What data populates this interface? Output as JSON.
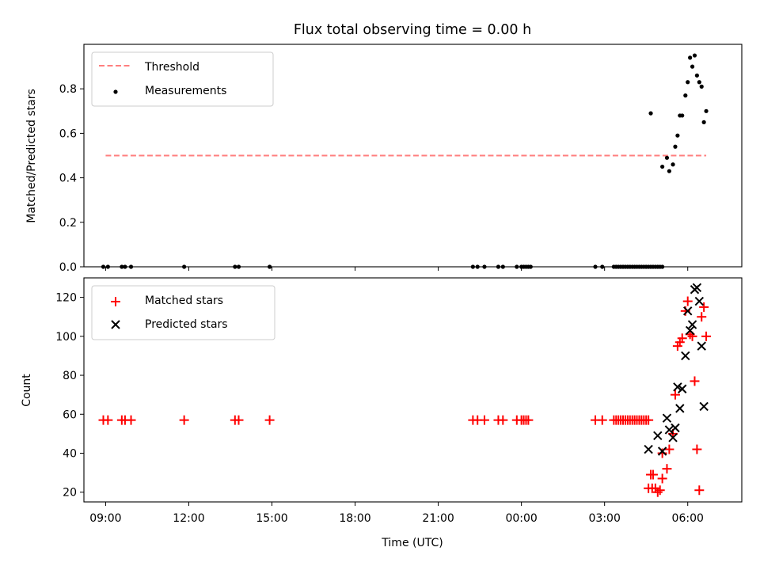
{
  "chart_data": [
    {
      "type": "scatter",
      "title": "Flux total observing time = 0.00 h",
      "xlabel": "",
      "ylabel": "Matched/Predicted stars",
      "xlim": [
        "08:13",
        "31:57"
      ],
      "ylim": [
        0,
        1.0
      ],
      "yticks": [
        "0.0",
        "0.2",
        "0.4",
        "0.6",
        "0.8"
      ],
      "legend_location": "upper left",
      "legend": [
        {
          "label": "Threshold",
          "marker": "dashed-line",
          "color": "#ff7f7f"
        },
        {
          "label": "Measurements",
          "marker": "dot",
          "color": "#000000"
        }
      ],
      "threshold": {
        "value": 0.5,
        "x_start": "09:00",
        "x_end": "30:40"
      },
      "series": [
        {
          "name": "Measurements",
          "color": "#000000",
          "x": [
            "08:55",
            "09:05",
            "09:35",
            "09:42",
            "09:55",
            "11:50",
            "13:40",
            "13:48",
            "14:55",
            "22:15",
            "22:25",
            "22:40",
            "23:10",
            "23:20",
            "23:50",
            "24:00",
            "24:05",
            "24:10",
            "24:15",
            "24:20",
            "26:40",
            "26:55",
            "27:20",
            "27:25",
            "27:30",
            "27:35",
            "27:40",
            "27:45",
            "27:50",
            "27:55",
            "28:00",
            "28:05",
            "28:10",
            "28:15",
            "28:20",
            "28:25",
            "28:30",
            "28:35",
            "28:40",
            "28:45",
            "28:50",
            "28:55",
            "29:00",
            "29:05",
            "28:40",
            "29:05",
            "29:15",
            "29:20",
            "29:28",
            "29:33",
            "29:38",
            "29:43",
            "29:48",
            "29:55",
            "30:00",
            "30:05",
            "30:10",
            "30:15",
            "30:20",
            "30:25",
            "30:30",
            "30:35",
            "30:40"
          ],
          "y": [
            0,
            0,
            0,
            0,
            0,
            0,
            0,
            0,
            0,
            0,
            0,
            0,
            0,
            0,
            0,
            0,
            0,
            0,
            0,
            0,
            0,
            0,
            0,
            0,
            0,
            0,
            0,
            0,
            0,
            0,
            0,
            0,
            0,
            0,
            0,
            0,
            0,
            0,
            0,
            0,
            0,
            0,
            0,
            0,
            0.69,
            0.45,
            0.49,
            0.43,
            0.46,
            0.54,
            0.59,
            0.68,
            0.68,
            0.77,
            0.83,
            0.94,
            0.9,
            0.95,
            0.86,
            0.83,
            0.81,
            0.65,
            0.7
          ]
        }
      ]
    },
    {
      "type": "scatter",
      "xlabel": "Time (UTC)",
      "ylabel": "Count",
      "xlim": [
        "08:13",
        "31:57"
      ],
      "ylim": [
        15,
        130
      ],
      "xticks": [
        "09:00",
        "12:00",
        "15:00",
        "18:00",
        "21:00",
        "00:00",
        "03:00",
        "06:00"
      ],
      "yticks": [
        "20",
        "40",
        "60",
        "80",
        "100",
        "120"
      ],
      "legend_location": "upper left",
      "legend": [
        {
          "label": "Matched stars",
          "marker": "plus",
          "color": "#ff0000"
        },
        {
          "label": "Predicted stars",
          "marker": "x",
          "color": "#000000"
        }
      ],
      "series": [
        {
          "name": "Matched stars",
          "color": "#ff0000",
          "x": [
            "08:55",
            "09:05",
            "09:35",
            "09:42",
            "09:55",
            "11:50",
            "13:40",
            "13:48",
            "14:55",
            "22:15",
            "22:25",
            "22:40",
            "23:10",
            "23:20",
            "23:50",
            "24:00",
            "24:05",
            "24:10",
            "24:15",
            "26:40",
            "26:55",
            "27:20",
            "27:25",
            "27:30",
            "27:35",
            "27:40",
            "27:45",
            "27:50",
            "27:55",
            "28:00",
            "28:05",
            "28:10",
            "28:15",
            "28:20",
            "28:25",
            "28:30",
            "28:35",
            "28:40",
            "28:45",
            "28:50",
            "28:55",
            "29:00",
            "29:05",
            "28:35",
            "28:43",
            "29:05",
            "29:15",
            "29:20",
            "29:28",
            "29:33",
            "29:38",
            "29:43",
            "29:48",
            "29:55",
            "30:00",
            "30:05",
            "30:10",
            "30:15",
            "30:20",
            "30:25",
            "30:30",
            "30:35",
            "30:40"
          ],
          "y": [
            57,
            57,
            57,
            57,
            57,
            57,
            57,
            57,
            57,
            57,
            57,
            57,
            57,
            57,
            57,
            57,
            57,
            57,
            57,
            57,
            57,
            57,
            57,
            57,
            57,
            57,
            57,
            57,
            57,
            57,
            57,
            57,
            57,
            57,
            57,
            57,
            57,
            29,
            29,
            22,
            20,
            21,
            27,
            22,
            22,
            40,
            32,
            42,
            50,
            70,
            95,
            97,
            99,
            113,
            118,
            101,
            100,
            77,
            42,
            21,
            110,
            115,
            100
          ]
        },
        {
          "name": "Predicted stars",
          "color": "#000000",
          "x": [
            "28:35",
            "28:55",
            "29:05",
            "29:15",
            "29:20",
            "29:28",
            "29:33",
            "29:38",
            "29:43",
            "29:48",
            "29:55",
            "30:00",
            "30:05",
            "30:10",
            "30:15",
            "30:20",
            "30:25",
            "30:30",
            "30:35"
          ],
          "y": [
            42,
            49,
            41,
            58,
            52,
            48,
            53,
            74,
            63,
            73,
            90,
            113,
            103,
            106,
            124,
            125,
            118,
            95,
            64
          ]
        }
      ]
    }
  ]
}
